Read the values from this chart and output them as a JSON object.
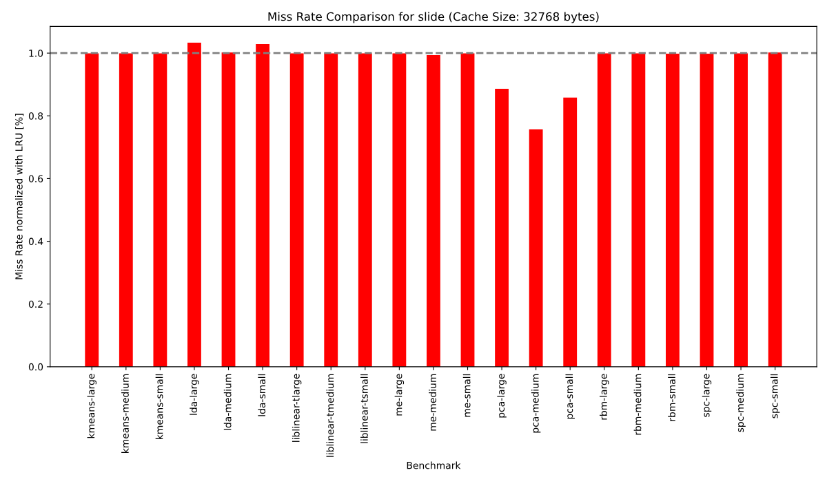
{
  "chart_data": {
    "type": "bar",
    "title": "Miss Rate Comparison for slide (Cache Size: 32768 bytes)",
    "xlabel": "Benchmark",
    "ylabel": "Miss Rate normalized with LRU [%]",
    "categories": [
      "kmeans-large",
      "kmeans-medium",
      "kmeans-small",
      "lda-large",
      "lda-medium",
      "lda-small",
      "liblinear-tlarge",
      "liblinear-tmedium",
      "liblinear-tsmall",
      "me-large",
      "me-medium",
      "me-small",
      "pca-large",
      "pca-medium",
      "pca-small",
      "rbm-large",
      "rbm-medium",
      "rbm-small",
      "spc-large",
      "spc-medium",
      "spc-small"
    ],
    "values": [
      0.999,
      0.999,
      0.999,
      1.033,
      1.002,
      1.029,
      0.999,
      0.999,
      0.999,
      0.999,
      0.994,
      0.999,
      0.886,
      0.757,
      0.858,
      0.999,
      0.999,
      0.998,
      0.998,
      0.999,
      1.002
    ],
    "color": "#ff0000",
    "ylim": [
      0,
      1.085
    ],
    "yticks": [
      {
        "value": 0,
        "label": "0.0"
      },
      {
        "value": 0.2,
        "label": "0.2"
      },
      {
        "value": 0.4,
        "label": "0.4"
      },
      {
        "value": 0.6,
        "label": "0.6"
      },
      {
        "value": 0.8,
        "label": "0.8"
      },
      {
        "value": 1,
        "label": "1.0"
      }
    ],
    "ref_lines": [
      {
        "axis": "y",
        "value": 1,
        "color": "#808080",
        "line_style": "dashed"
      }
    ],
    "grid": false
  }
}
